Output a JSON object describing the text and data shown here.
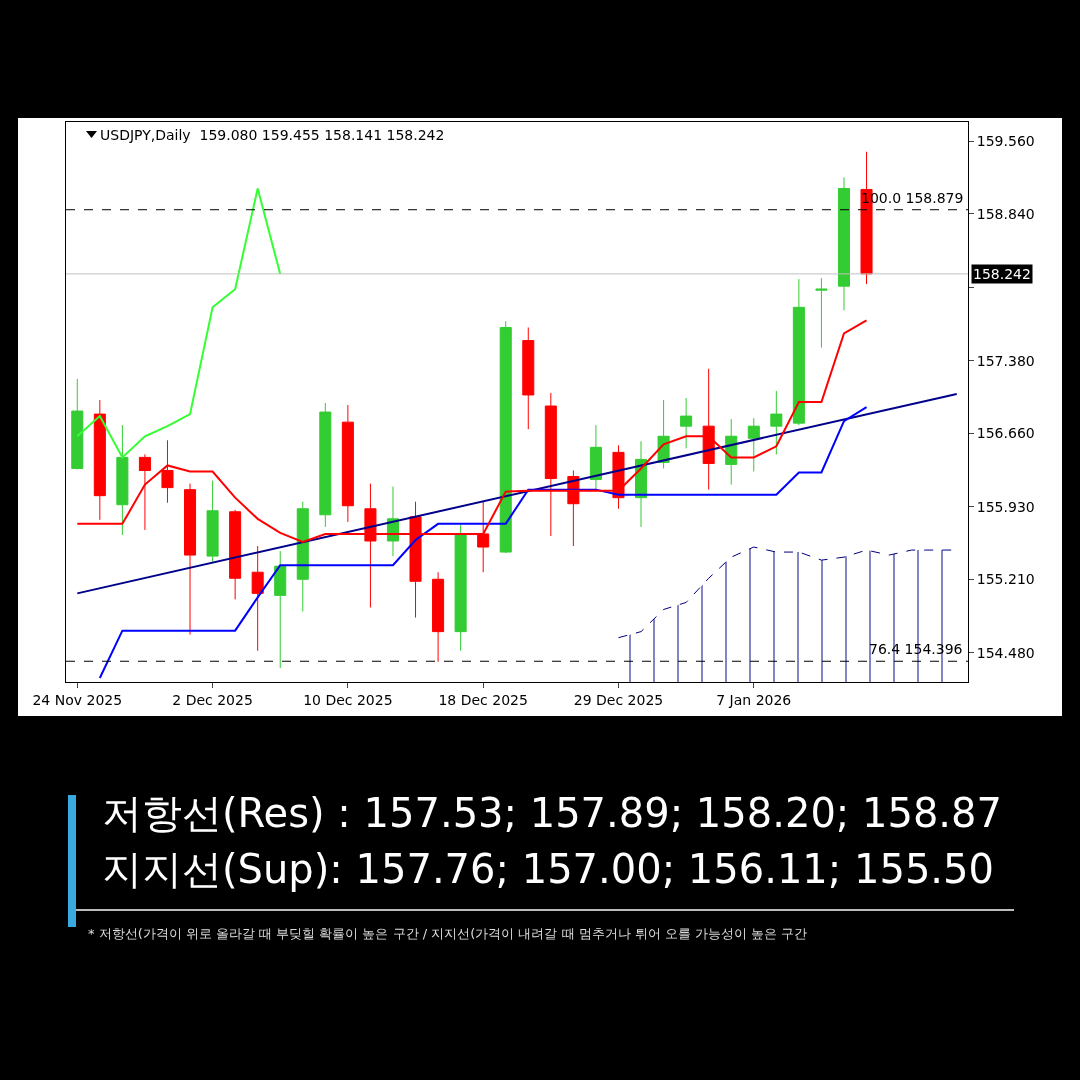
{
  "chart_data": {
    "type": "candlestick",
    "title": "USDJPY,Daily  159.080 159.455 158.141 158.242",
    "categories": [
      "24 Nov 2025",
      null,
      null,
      null,
      null,
      null,
      "2 Dec 2025",
      null,
      null,
      null,
      null,
      null,
      "10 Dec 2025",
      null,
      null,
      null,
      null,
      null,
      "18 Dec 2025",
      null,
      null,
      null,
      null,
      null,
      "29 Dec 2025",
      null,
      null,
      null,
      null,
      null,
      "7 Jan 2026",
      null,
      null,
      null,
      null,
      null,
      null,
      null,
      null,
      null
    ],
    "ohlc": [
      [
        156.31,
        157.2,
        156.3,
        156.88
      ],
      [
        156.85,
        156.99,
        155.8,
        156.04
      ],
      [
        155.95,
        156.74,
        155.65,
        156.42
      ],
      [
        156.42,
        156.45,
        155.7,
        156.29
      ],
      [
        156.29,
        156.59,
        155.97,
        156.12
      ],
      [
        156.1,
        156.16,
        154.66,
        155.45
      ],
      [
        155.44,
        156.19,
        155.38,
        155.89
      ],
      [
        155.88,
        155.9,
        155.01,
        155.22
      ],
      [
        155.28,
        155.54,
        154.5,
        155.07
      ],
      [
        155.05,
        155.49,
        154.33,
        155.34
      ],
      [
        155.21,
        155.98,
        154.89,
        155.91
      ],
      [
        155.85,
        156.96,
        155.73,
        156.87
      ],
      [
        156.77,
        156.94,
        155.78,
        155.94
      ],
      [
        155.91,
        156.16,
        154.93,
        155.59
      ],
      [
        155.59,
        156.13,
        155.44,
        155.81
      ],
      [
        155.83,
        155.98,
        154.83,
        155.19
      ],
      [
        155.21,
        155.28,
        154.39,
        154.69
      ],
      [
        154.69,
        155.75,
        154.5,
        155.66
      ],
      [
        155.66,
        155.98,
        155.28,
        155.53
      ],
      [
        155.48,
        157.77,
        155.47,
        157.71
      ],
      [
        157.58,
        157.71,
        156.7,
        157.04
      ],
      [
        156.93,
        157.06,
        155.64,
        156.21
      ],
      [
        156.23,
        156.29,
        155.54,
        155.96
      ],
      [
        156.2,
        156.74,
        156.09,
        156.52
      ],
      [
        156.47,
        156.54,
        155.91,
        156.02
      ],
      [
        156.02,
        156.58,
        155.73,
        156.4
      ],
      [
        156.37,
        156.99,
        156.31,
        156.63
      ],
      [
        156.73,
        157.01,
        156.51,
        156.83
      ],
      [
        156.73,
        157.3,
        156.1,
        156.36
      ],
      [
        156.35,
        156.8,
        156.15,
        156.63
      ],
      [
        156.61,
        156.81,
        156.28,
        156.73
      ],
      [
        156.73,
        157.08,
        156.45,
        156.85
      ],
      [
        156.76,
        158.19,
        156.74,
        157.91
      ],
      [
        158.08,
        158.2,
        157.51,
        158.09
      ],
      [
        158.12,
        159.2,
        157.88,
        159.09
      ],
      [
        159.08,
        159.455,
        158.141,
        158.242
      ],
      null,
      null,
      null,
      null
    ],
    "colors": [
      "#33cc33",
      "#ff0000",
      "#33cc33",
      "#ff0000",
      "#ff0000",
      "#ff0000",
      "#33cc33",
      "#ff0000",
      "#ff0000",
      "#33cc33",
      "#33cc33",
      "#33cc33",
      "#ff0000",
      "#ff0000",
      "#33cc33",
      "#ff0000",
      "#ff0000",
      "#33cc33",
      "#ff0000",
      "#33cc33",
      "#ff0000",
      "#ff0000",
      "#ff0000",
      "#33cc33",
      "#ff0000",
      "#33cc33",
      "#33cc33",
      "#33cc33",
      "#ff0000",
      "#33cc33",
      "#33cc33",
      "#33cc33",
      "#33cc33",
      "#33cc33",
      "#33cc33",
      "#ff0000",
      null,
      null,
      null,
      null
    ],
    "series": [
      {
        "type": "area",
        "color": "#000080",
        "line_style": "dashed",
        "values": [
          null,
          null,
          null,
          null,
          null,
          null,
          null,
          null,
          null,
          null,
          null,
          null,
          null,
          null,
          null,
          null,
          null,
          null,
          null,
          null,
          null,
          null,
          null,
          null,
          154.63,
          154.69,
          154.91,
          154.98,
          155.22,
          155.43,
          155.53,
          155.48,
          155.48,
          155.4,
          155.43,
          155.5,
          155.45,
          155.5,
          155.5,
          155.5
        ]
      },
      {
        "type": "line",
        "color": "#00008b",
        "values": [
          155.07,
          null,
          null,
          null,
          null,
          null,
          null,
          null,
          null,
          null,
          null,
          null,
          null,
          null,
          null,
          null,
          null,
          null,
          null,
          null,
          null,
          null,
          null,
          null,
          null,
          null,
          null,
          null,
          null,
          null,
          null,
          null,
          null,
          null,
          null,
          null,
          null,
          null,
          null,
          157.05
        ]
      },
      {
        "type": "line",
        "color": "#33ff33",
        "values": [
          156.63,
          156.83,
          156.42,
          156.63,
          156.73,
          156.85,
          157.91,
          158.09,
          159.09,
          158.24,
          null,
          null,
          null,
          null,
          null,
          null,
          null,
          null,
          null,
          null,
          null,
          null,
          null,
          null,
          null,
          null,
          null,
          null,
          null,
          null,
          null,
          null,
          null,
          null,
          null,
          null,
          null,
          null,
          null,
          null
        ]
      },
      {
        "type": "line",
        "color": "#0000ff",
        "values": [
          null,
          154.23,
          154.7,
          154.7,
          154.7,
          154.7,
          154.7,
          154.7,
          155.03,
          155.35,
          155.35,
          155.35,
          155.35,
          155.35,
          155.35,
          155.6,
          155.76,
          155.76,
          155.76,
          155.76,
          156.1,
          156.1,
          156.1,
          156.1,
          156.05,
          156.05,
          156.05,
          156.05,
          156.05,
          156.05,
          156.05,
          156.05,
          156.27,
          156.27,
          156.78,
          156.92,
          null,
          null,
          null,
          null
        ]
      },
      {
        "type": "line",
        "color": "#ff0000",
        "values": [
          155.76,
          155.76,
          155.76,
          156.15,
          156.34,
          156.28,
          156.28,
          156.02,
          155.81,
          155.67,
          155.58,
          155.66,
          155.66,
          155.66,
          155.66,
          155.66,
          155.66,
          155.66,
          155.66,
          156.08,
          156.09,
          156.09,
          156.09,
          156.09,
          156.09,
          156.31,
          156.55,
          156.63,
          156.63,
          156.42,
          156.42,
          156.53,
          156.97,
          156.97,
          157.65,
          157.78,
          null,
          null,
          null,
          null
        ]
      }
    ],
    "ylim": [
      154.19,
      159.75
    ],
    "yticks": [
      {
        "value": 159.56,
        "label": "159.560"
      },
      {
        "value": 158.84,
        "label": "158.840"
      },
      {
        "value": 158.11,
        "label": null
      },
      {
        "value": 157.38,
        "label": "157.380"
      },
      {
        "value": 156.66,
        "label": "156.660"
      },
      {
        "value": 155.93,
        "label": "155.930"
      },
      {
        "value": 155.21,
        "label": "155.210"
      },
      {
        "value": 154.48,
        "label": "154.480"
      }
    ],
    "ref_lines": [
      {
        "axis": "y",
        "value": 158.879,
        "label": "100.0 158.879",
        "color": "#000000",
        "line_style": "dashed"
      },
      {
        "axis": "y",
        "value": 154.396,
        "label": "76.4 154.396",
        "color": "#000000",
        "line_style": "dashed"
      },
      {
        "axis": "y",
        "value": 158.242,
        "label": "158.242",
        "color": "#c0c0c0",
        "line_style": "solid"
      }
    ],
    "annotations": [
      "저항선(Res) : 157.53; 157.89; 158.20; 158.87",
      "지지선(Sup):  157.76; 157.00; 156.11; 155.50",
      "* 저항선(가격이 위로 올라갈 때 부딪힐 확률이 높은 구간 / 지지선(가격이 내려갈 때 멈추거나 튀어 오를 가능성이 높은 구간"
    ],
    "grid": false
  }
}
